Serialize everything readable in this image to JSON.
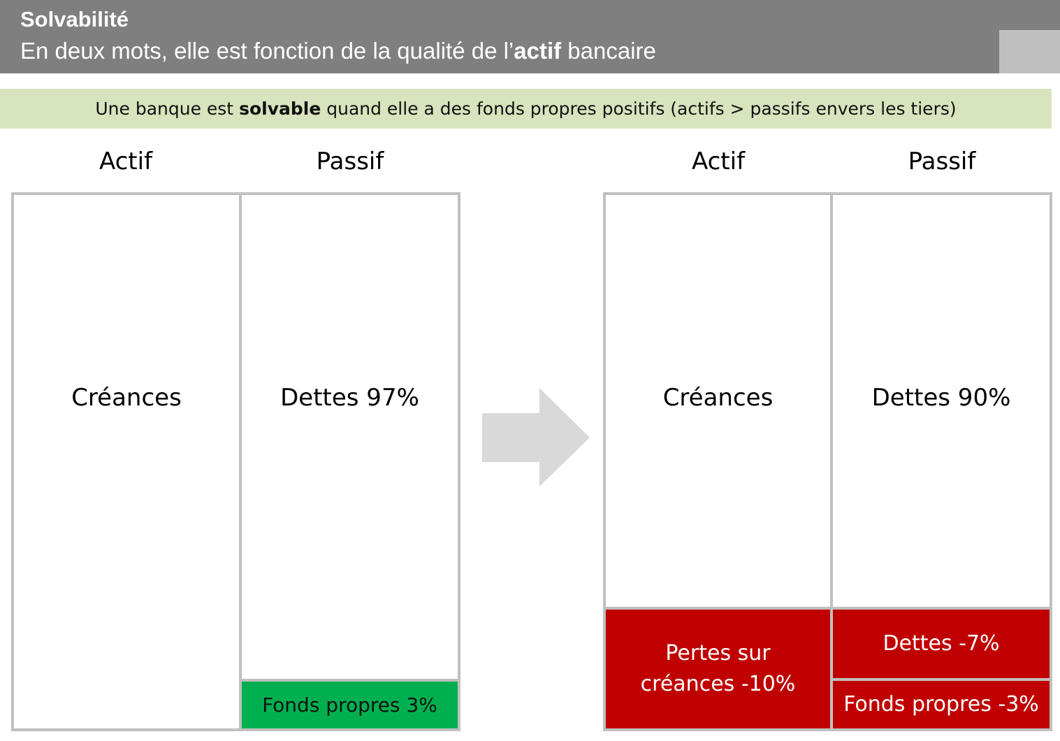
{
  "header": {
    "title": "Solvabilité",
    "subtitle_before": "En deux mots, elle est fonction de la qualité de l’",
    "subtitle_bold": "actif",
    "subtitle_after": " bancaire"
  },
  "banner": {
    "before": "Une banque est ",
    "bold": "solvable",
    "after": " quand elle a des fonds propres positifs (actifs > passifs envers les tiers)"
  },
  "left_sheet": {
    "actif_heading": "Actif",
    "passif_heading": "Passif",
    "creances": "Créances",
    "dettes": "Dettes 97%",
    "fonds_propres": "Fonds propres 3%"
  },
  "right_sheet": {
    "actif_heading": "Actif",
    "passif_heading": "Passif",
    "creances": "Créances",
    "dettes": "Dettes 90%",
    "pertes_line1": "Pertes  sur",
    "pertes_line2": "créances -10%",
    "dettes_loss": "Dettes -7%",
    "fonds_propres": "Fonds propres -3%"
  },
  "colors": {
    "header_bg": "#7f7f7f",
    "banner_bg": "#d7e4bd",
    "equity_positive": "#00b050",
    "loss_red": "#c00000",
    "arrow": "#d9d9d9"
  }
}
